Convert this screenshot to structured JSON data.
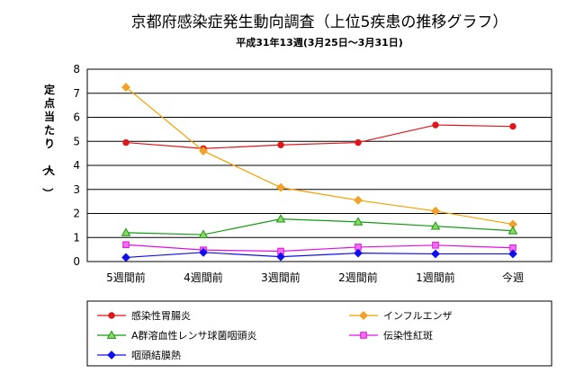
{
  "chart_data": {
    "type": "line",
    "title": "京都府感染症発生動向調査（上位5疾患の推移グラフ）",
    "subtitle": "平成31年13週(3月25日～3月31日)",
    "ylabel": "定点当たり（人）",
    "xlabel": "",
    "ylim": [
      0,
      8
    ],
    "yticks": [
      "0",
      "1",
      "2",
      "3",
      "4",
      "5",
      "6",
      "7",
      "8"
    ],
    "grid": true,
    "legend_position": "bottom",
    "categories": [
      "5週間前",
      "4週間前",
      "3週間前",
      "2週間前",
      "1週間前",
      "今週"
    ],
    "series": [
      {
        "name": "感染性胃腸炎",
        "color": "#e0161a",
        "marker": "circle",
        "values": [
          4.95,
          4.7,
          4.85,
          4.95,
          5.68,
          5.62
        ]
      },
      {
        "name": "インフルエンザ",
        "color": "#f5a000",
        "marker": "diamond",
        "markerFill": "#f0a040",
        "values": [
          7.25,
          4.6,
          3.08,
          2.55,
          2.1,
          1.55
        ]
      },
      {
        "name": "A群溶血性レンサ球菌咽頭炎",
        "color": "#129a12",
        "marker": "triangle",
        "markerFill": "#8ed860",
        "values": [
          1.2,
          1.12,
          1.77,
          1.65,
          1.47,
          1.28
        ]
      },
      {
        "name": "伝染性紅斑",
        "color": "#e010e0",
        "marker": "square",
        "markerFill": "#f070f0",
        "values": [
          0.7,
          0.48,
          0.43,
          0.6,
          0.68,
          0.57
        ]
      },
      {
        "name": "咽頭結膜熱",
        "color": "#1010ee",
        "marker": "diamond",
        "markerFill": "#1010ee",
        "values": [
          0.17,
          0.38,
          0.2,
          0.35,
          0.32,
          0.32
        ]
      }
    ]
  }
}
